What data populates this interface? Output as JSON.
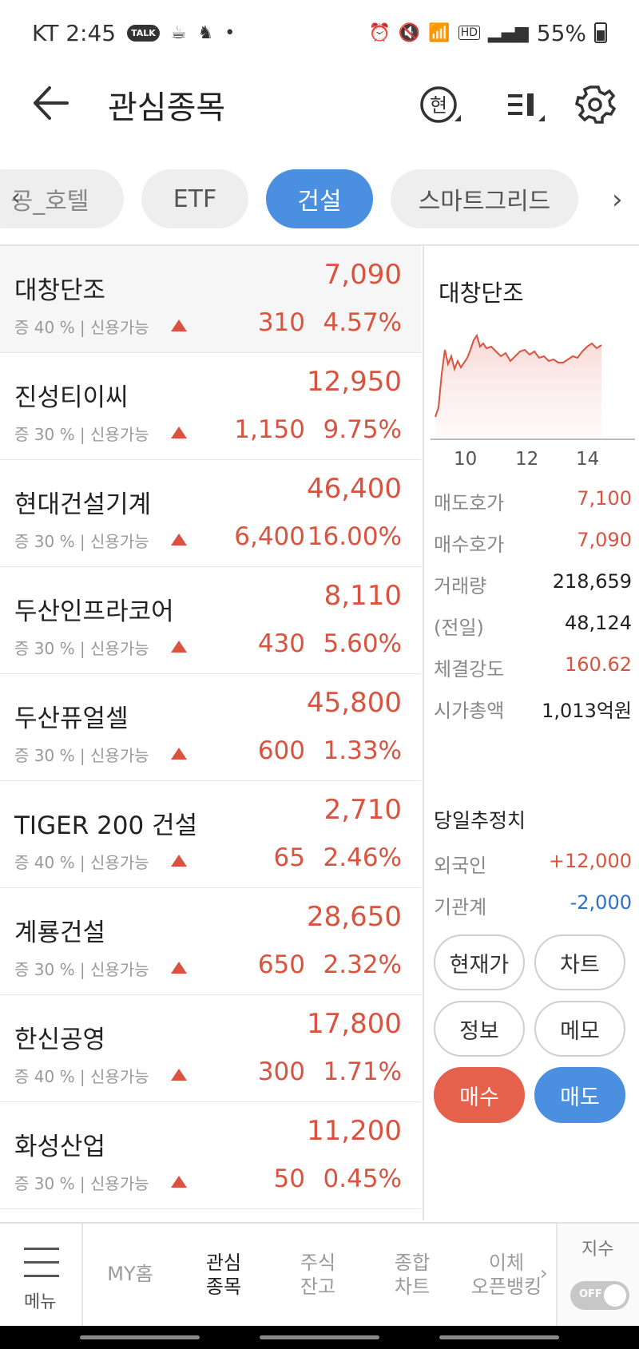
{
  "status": {
    "time": "KT 2:45",
    "talk": "TALK",
    "battery": "55%",
    "hd": "HD"
  },
  "header": {
    "title": "관심종목",
    "current_icon_label": "현"
  },
  "tabs": {
    "items": [
      {
        "label": "공_호텔"
      },
      {
        "label": "ETF"
      },
      {
        "label": "건설"
      },
      {
        "label": "스마트그리드"
      }
    ],
    "active_index": 2
  },
  "stocks": [
    {
      "name": "대창단조",
      "price": "7,090",
      "sub": "증 40 % | 신용가능",
      "change": "310",
      "rate": "4.57%"
    },
    {
      "name": "진성티이씨",
      "price": "12,950",
      "sub": "증 30 % | 신용가능",
      "change": "1,150",
      "rate": "9.75%"
    },
    {
      "name": "현대건설기계",
      "price": "46,400",
      "sub": "증 30 % | 신용가능",
      "change": "6,400",
      "rate": "16.00%"
    },
    {
      "name": "두산인프라코어",
      "price": "8,110",
      "sub": "증 30 % | 신용가능",
      "change": "430",
      "rate": "5.60%"
    },
    {
      "name": "두산퓨얼셀",
      "price": "45,800",
      "sub": "증 30 % | 신용가능",
      "change": "600",
      "rate": "1.33%"
    },
    {
      "name": "TIGER 200 건설",
      "price": "2,710",
      "sub": "증 40 % | 신용가능",
      "change": "65",
      "rate": "2.46%"
    },
    {
      "name": "계룡건설",
      "price": "28,650",
      "sub": "증 30 % | 신용가능",
      "change": "650",
      "rate": "2.32%"
    },
    {
      "name": "한신공영",
      "price": "17,800",
      "sub": "증 40 % | 신용가능",
      "change": "300",
      "rate": "1.71%"
    },
    {
      "name": "화성산업",
      "price": "11,200",
      "sub": "증 30 % | 신용가능",
      "change": "50",
      "rate": "0.45%"
    }
  ],
  "panel": {
    "name": "대창단조",
    "chart_labels": [
      "10",
      "12",
      "14"
    ],
    "quotes": [
      {
        "key": "매도호가",
        "value": "7,100",
        "tone": "up"
      },
      {
        "key": "매수호가",
        "value": "7,090",
        "tone": "up"
      },
      {
        "key": "거래량",
        "value": "218,659",
        "tone": "neutral"
      },
      {
        "key": "(전일)",
        "value": "48,124",
        "tone": "neutral"
      },
      {
        "key": "체결강도",
        "value": "160.62",
        "tone": "up"
      },
      {
        "key": "시가총액",
        "value": "1,013억원",
        "tone": "neutral"
      }
    ],
    "estimate_title": "당일추정치",
    "estimates": [
      {
        "key": "외국인",
        "value": "+12,000",
        "tone": "up"
      },
      {
        "key": "기관계",
        "value": "-2,000",
        "tone": "down"
      }
    ],
    "buttons": {
      "current": "현재가",
      "chart": "차트",
      "info": "정보",
      "memo": "메모",
      "buy": "매수",
      "sell": "매도"
    }
  },
  "colors": {
    "up": "#d9533f",
    "down": "#2f6fc4",
    "accent": "#4a8fe0",
    "buy": "#e5614c"
  },
  "bottom_nav": {
    "menu": "메뉴",
    "items": [
      {
        "line1": "MY홈",
        "line2": ""
      },
      {
        "line1": "관심",
        "line2": "종목"
      },
      {
        "line1": "주식",
        "line2": "잔고"
      },
      {
        "line1": "종합",
        "line2": "차트"
      },
      {
        "line1": "이체",
        "line2": "오픈뱅킹"
      }
    ],
    "active_index": 1,
    "index_label": "지수",
    "toggle_label": "OFF"
  }
}
